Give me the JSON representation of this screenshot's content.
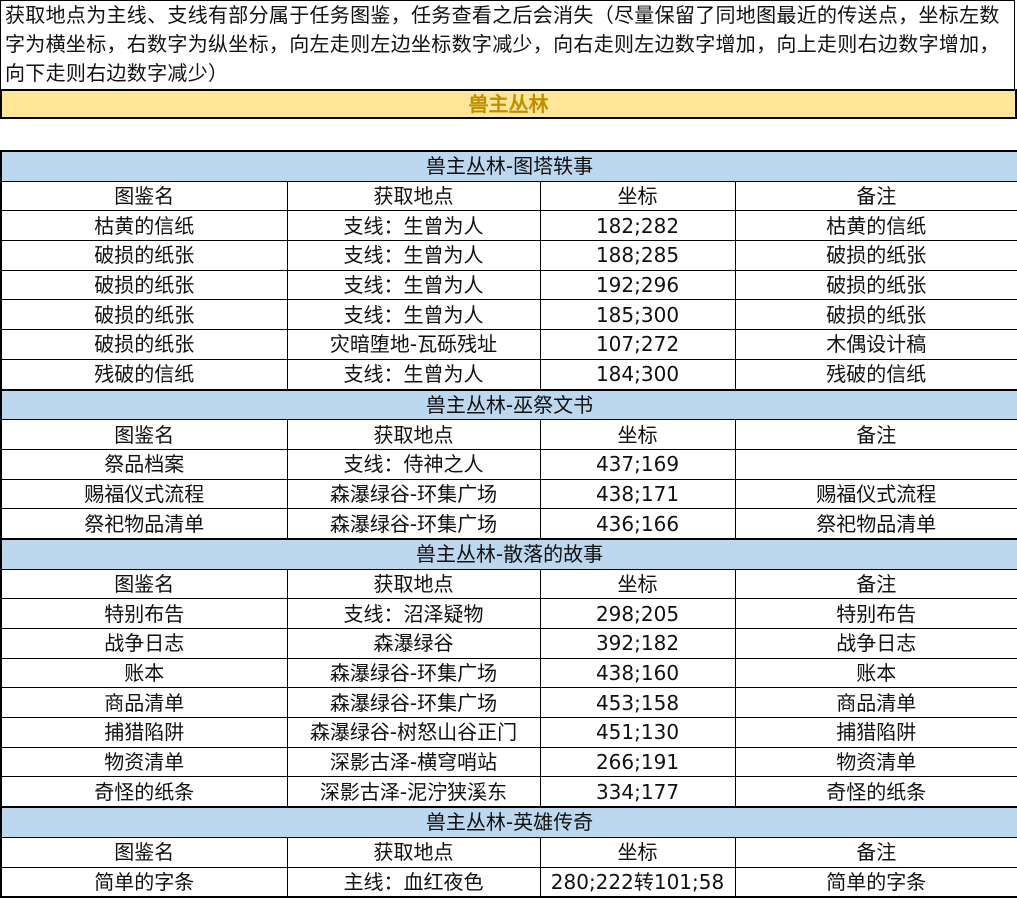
{
  "note": "获取地点为主线、支线有部分属于任务图鉴，任务查看之后会消失（尽量保留了同地图最近的传送点，坐标左数字为横坐标，右数字为纵坐标，向左走则左边坐标数字减少，向右走则左边数字增加，向上走则右边数字增加，向下走则右边数字减少）",
  "banner": "兽主丛林",
  "colors": {
    "banner_bg": "#ffe699",
    "banner_text": "#bf8f00",
    "section_bg": "#bdd7ee"
  },
  "columns": [
    "图鉴名",
    "获取地点",
    "坐标",
    "备注"
  ],
  "sections": [
    {
      "title": "兽主丛林-图塔轶事",
      "rows": [
        [
          "枯黄的信纸",
          "支线：生曾为人",
          "182;282",
          "枯黄的信纸"
        ],
        [
          "破损的纸张",
          "支线：生曾为人",
          "188;285",
          "破损的纸张"
        ],
        [
          "破损的纸张",
          "支线：生曾为人",
          "192;296",
          "破损的纸张"
        ],
        [
          "破损的纸张",
          "支线：生曾为人",
          "185;300",
          "破损的纸张"
        ],
        [
          "破损的纸张",
          "灾暗堕地-瓦砾残址",
          "107;272",
          "木偶设计稿"
        ],
        [
          "残破的信纸",
          "支线：生曾为人",
          "184;300",
          "残破的信纸"
        ]
      ]
    },
    {
      "title": "兽主丛林-巫祭文书",
      "rows": [
        [
          "祭品档案",
          "支线：侍神之人",
          "437;169",
          ""
        ],
        [
          "赐福仪式流程",
          "森瀑绿谷-环集广场",
          "438;171",
          "赐福仪式流程"
        ],
        [
          "祭祀物品清单",
          "森瀑绿谷-环集广场",
          "436;166",
          "祭祀物品清单"
        ]
      ]
    },
    {
      "title": "兽主丛林-散落的故事",
      "rows": [
        [
          "特别布告",
          "支线：沼泽疑物",
          "298;205",
          "特别布告"
        ],
        [
          "战争日志",
          "森瀑绿谷",
          "392;182",
          "战争日志"
        ],
        [
          "账本",
          "森瀑绿谷-环集广场",
          "438;160",
          "账本"
        ],
        [
          "商品清单",
          "森瀑绿谷-环集广场",
          "453;158",
          "商品清单"
        ],
        [
          "捕猎陷阱",
          "森瀑绿谷-树怒山谷正门",
          "451;130",
          "捕猎陷阱"
        ],
        [
          "物资清单",
          "深影古泽-横穹哨站",
          "266;191",
          "物资清单"
        ],
        [
          "奇怪的纸条",
          "深影古泽-泥泞狭溪东",
          "334;177",
          "奇怪的纸条"
        ]
      ]
    },
    {
      "title": "兽主丛林-英雄传奇",
      "rows": [
        [
          "简单的字条",
          "主线：血红夜色",
          "280;222转101;58",
          "简单的字条"
        ]
      ]
    }
  ]
}
